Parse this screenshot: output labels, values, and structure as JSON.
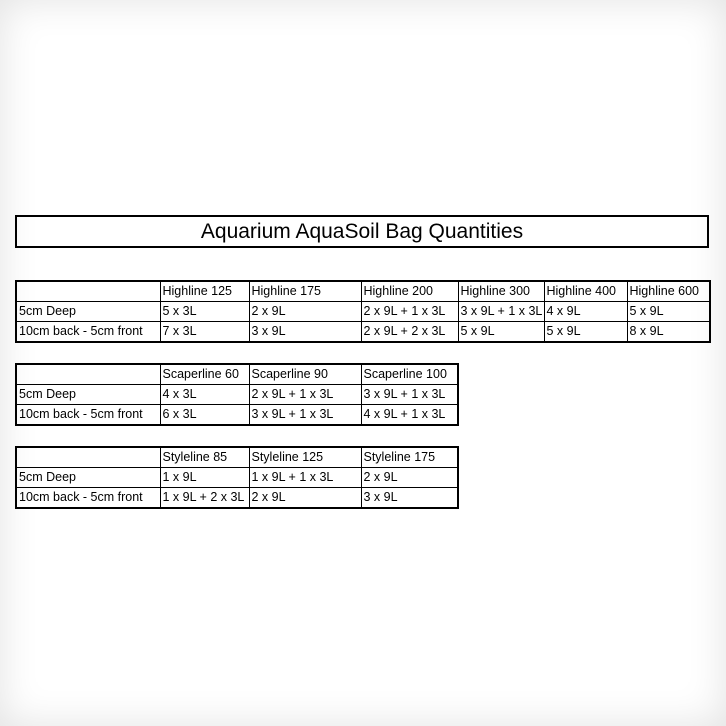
{
  "title": "Aquarium AquaSoil Bag Quantities",
  "tables": [
    {
      "columns": [
        "Highline 125",
        "Highline 175",
        "Highline 200",
        "Highline 300",
        "Highline 400",
        "Highline 600"
      ],
      "rows": [
        {
          "label": "5cm Deep",
          "values": [
            "5 x 3L",
            "2 x 9L",
            "2 x 9L + 1 x 3L",
            "3 x 9L + 1 x 3L",
            "4 x 9L",
            "5 x 9L"
          ]
        },
        {
          "label": "10cm back - 5cm front",
          "values": [
            "7 x 3L",
            "3 x 9L",
            "2 x 9L + 2 x 3L",
            "5 x 9L",
            "5 x 9L",
            "8 x 9L"
          ]
        }
      ]
    },
    {
      "columns": [
        "Scaperline 60",
        "Scaperline 90",
        "Scaperline 100"
      ],
      "rows": [
        {
          "label": "5cm Deep",
          "values": [
            "4 x 3L",
            "2 x 9L + 1 x 3L",
            "3 x 9L + 1 x 3L"
          ]
        },
        {
          "label": "10cm back - 5cm front",
          "values": [
            "6 x 3L",
            "3 x 9L + 1 x 3L",
            "4 x 9L + 1 x 3L"
          ]
        }
      ]
    },
    {
      "columns": [
        "Styleline 85",
        "Styleline 125",
        "Styleline 175"
      ],
      "rows": [
        {
          "label": "5cm Deep",
          "values": [
            "1 x 9L",
            "1 x 9L + 1 x 3L",
            "2 x 9L"
          ]
        },
        {
          "label": "10cm back - 5cm front",
          "values": [
            "1 x 9L + 2 x 3L",
            "2 x 9L",
            "3 x 9L"
          ]
        }
      ]
    }
  ]
}
